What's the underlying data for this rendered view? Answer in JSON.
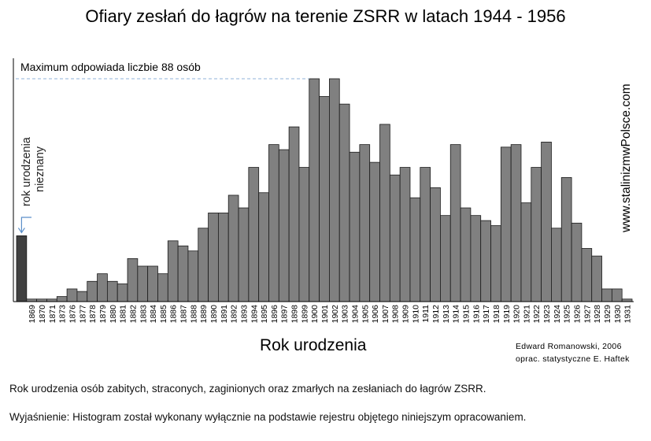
{
  "header": {
    "title": "Ofiary zesłań do łagrów na terenie ZSRR w latach 1944 - 1956"
  },
  "annotations": {
    "max_note": "Maximum odpowiada liczbie 88 osób",
    "unknown_line1": "rok urodzenia",
    "unknown_line2": "nieznany",
    "watermark": "www.stalinizmwPolsce.com",
    "credit_line1": "Edward Romanowski, 2006",
    "credit_line2": "oprac. statystyczne E. Haftek"
  },
  "footer": {
    "caption1": "Rok urodzenia osób zabitych, straconych, zaginionych oraz zmarłych na zesłaniach do łagrów ZSRR.",
    "caption2": "Wyjaśnienie: Histogram został wykonany wyłącznie na podstawie rejestru objętego niniejszym opracowaniem."
  },
  "colors": {
    "bar": "#808080",
    "unknown_bar": "#404040",
    "bar_stroke": "#1a1a1a",
    "max_line": "#8fb3d9",
    "arrow": "#5b8fc9"
  },
  "chart_data": {
    "type": "bar",
    "title": "Ofiary zesłań do łagrów na terenie ZSRR w latach 1944 - 1956",
    "xlabel": "Rok urodzenia",
    "ylabel": "",
    "ylim": [
      0,
      88
    ],
    "grid": false,
    "categories": [
      "",
      "1869",
      "1870",
      "1871",
      "1873",
      "1876",
      "1877",
      "1878",
      "1879",
      "1880",
      "1881",
      "1882",
      "1883",
      "1884",
      "1885",
      "1886",
      "1887",
      "1888",
      "1889",
      "1890",
      "1891",
      "1892",
      "1893",
      "1894",
      "1895",
      "1896",
      "1897",
      "1898",
      "1899",
      "1900",
      "1901",
      "1902",
      "1903",
      "1904",
      "1905",
      "1906",
      "1907",
      "1908",
      "1909",
      "1910",
      "1911",
      "1912",
      "1913",
      "1914",
      "1915",
      "1916",
      "1917",
      "1918",
      "1919",
      "1920",
      "1921",
      "1922",
      "1923",
      "1924",
      "1925",
      "1926",
      "1927",
      "1928",
      "1929",
      "1930",
      "1931"
    ],
    "values": [
      26,
      1,
      1,
      1,
      2,
      5,
      4,
      8,
      11,
      8,
      7,
      17,
      14,
      14,
      11,
      24,
      22,
      20,
      29,
      35,
      35,
      42,
      37,
      53,
      43,
      62,
      60,
      69,
      53,
      88,
      81,
      88,
      78,
      59,
      62,
      55,
      70,
      50,
      53,
      41,
      53,
      45,
      34,
      62,
      37,
      34,
      32,
      30,
      61,
      62,
      39,
      53,
      63,
      29,
      49,
      31,
      21,
      18,
      5,
      5,
      1
    ],
    "highlighted_index": 0,
    "highlight_label": "rok urodzenia nieznany",
    "max_value": 88
  }
}
